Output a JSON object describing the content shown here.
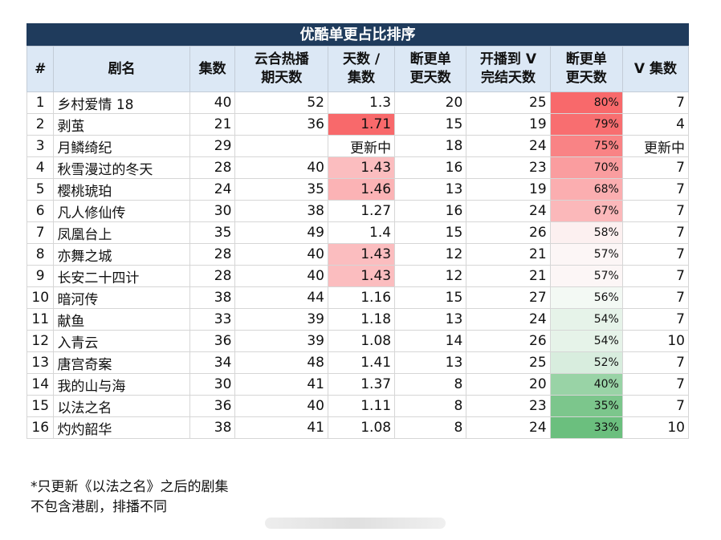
{
  "title": "优酷单更占比排序",
  "headers": [
    "#",
    "剧名",
    "集数",
    "云合热播\n期天数",
    "天数 /\n集数",
    "断更单\n更天数",
    "开播到 V\n完结天数",
    "断更单\n更天数",
    "V 集数"
  ],
  "rows": [
    {
      "idx": "1",
      "name": "乡村爱情 18",
      "eps": "40",
      "days": "52",
      "ratio": "1.3",
      "gap": "20",
      "tov": "25",
      "pct": "80%",
      "v": "7",
      "ratio_color": "",
      "pct_color": "#f8696b"
    },
    {
      "idx": "2",
      "name": "剥茧",
      "eps": "21",
      "days": "36",
      "ratio": "1.71",
      "gap": "15",
      "tov": "19",
      "pct": "79%",
      "v": "4",
      "ratio_color": "#f8696b",
      "pct_color": "#f86e70"
    },
    {
      "idx": "3",
      "name": "月鳞绮纪",
      "eps": "29",
      "days": "",
      "ratio": "更新中",
      "gap": "18",
      "tov": "24",
      "pct": "75%",
      "v": "更新中",
      "ratio_color": "",
      "pct_color": "#f98385"
    },
    {
      "idx": "4",
      "name": "秋雪漫过的冬天",
      "eps": "28",
      "days": "40",
      "ratio": "1.43",
      "gap": "16",
      "tov": "23",
      "pct": "70%",
      "v": "7",
      "ratio_color": "#fbbdbf",
      "pct_color": "#fa9d9f"
    },
    {
      "idx": "5",
      "name": "樱桃琥珀",
      "eps": "24",
      "days": "35",
      "ratio": "1.46",
      "gap": "13",
      "tov": "19",
      "pct": "68%",
      "v": "7",
      "ratio_color": "#fbb3b5",
      "pct_color": "#fbaeb0"
    },
    {
      "idx": "6",
      "name": "凡人修仙传",
      "eps": "30",
      "days": "38",
      "ratio": "1.27",
      "gap": "16",
      "tov": "24",
      "pct": "67%",
      "v": "7",
      "ratio_color": "",
      "pct_color": "#fbb8ba"
    },
    {
      "idx": "7",
      "name": "凤凰台上",
      "eps": "35",
      "days": "49",
      "ratio": "1.4",
      "gap": "15",
      "tov": "26",
      "pct": "58%",
      "v": "7",
      "ratio_color": "",
      "pct_color": "#fcf0f0"
    },
    {
      "idx": "8",
      "name": "亦舞之城",
      "eps": "28",
      "days": "40",
      "ratio": "1.43",
      "gap": "12",
      "tov": "21",
      "pct": "57%",
      "v": "7",
      "ratio_color": "#fbbdbf",
      "pct_color": "#fcf6f6"
    },
    {
      "idx": "9",
      "name": "长安二十四计",
      "eps": "28",
      "days": "40",
      "ratio": "1.43",
      "gap": "12",
      "tov": "21",
      "pct": "57%",
      "v": "7",
      "ratio_color": "#fbbdbf",
      "pct_color": "#fcf6f6"
    },
    {
      "idx": "10",
      "name": "暗河传",
      "eps": "38",
      "days": "44",
      "ratio": "1.16",
      "gap": "15",
      "tov": "27",
      "pct": "56%",
      "v": "7",
      "ratio_color": "",
      "pct_color": "#f3f9f4"
    },
    {
      "idx": "11",
      "name": "献鱼",
      "eps": "33",
      "days": "39",
      "ratio": "1.18",
      "gap": "13",
      "tov": "24",
      "pct": "54%",
      "v": "7",
      "ratio_color": "",
      "pct_color": "#e6f3e9"
    },
    {
      "idx": "12",
      "name": "入青云",
      "eps": "36",
      "days": "39",
      "ratio": "1.08",
      "gap": "14",
      "tov": "26",
      "pct": "54%",
      "v": "10",
      "ratio_color": "",
      "pct_color": "#e6f3e9"
    },
    {
      "idx": "13",
      "name": "唐宫奇案",
      "eps": "34",
      "days": "48",
      "ratio": "1.41",
      "gap": "13",
      "tov": "25",
      "pct": "52%",
      "v": "7",
      "ratio_color": "",
      "pct_color": "#d8edde"
    },
    {
      "idx": "14",
      "name": "我的山与海",
      "eps": "30",
      "days": "41",
      "ratio": "1.37",
      "gap": "8",
      "tov": "20",
      "pct": "40%",
      "v": "7",
      "ratio_color": "",
      "pct_color": "#99d3a6"
    },
    {
      "idx": "15",
      "name": "以法之名",
      "eps": "36",
      "days": "40",
      "ratio": "1.11",
      "gap": "8",
      "tov": "23",
      "pct": "35%",
      "v": "7",
      "ratio_color": "",
      "pct_color": "#7cc68c"
    },
    {
      "idx": "16",
      "name": "灼灼韶华",
      "eps": "38",
      "days": "41",
      "ratio": "1.08",
      "gap": "8",
      "tov": "24",
      "pct": "33%",
      "v": "10",
      "ratio_color": "",
      "pct_color": "#6bbf7e"
    }
  ],
  "notes": [
    "*只更新《以法之名》之后的剧集",
    "不包含港剧，排播不同"
  ]
}
